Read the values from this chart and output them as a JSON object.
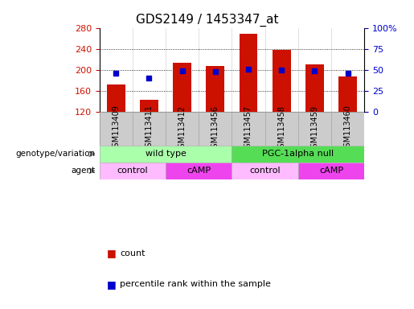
{
  "title": "GDS2149 / 1453347_at",
  "samples": [
    "GSM113409",
    "GSM113411",
    "GSM113412",
    "GSM113456",
    "GSM113457",
    "GSM113458",
    "GSM113459",
    "GSM113460"
  ],
  "counts": [
    172,
    143,
    213,
    207,
    268,
    238,
    210,
    188
  ],
  "percentile_ranks": [
    46,
    40,
    49,
    48,
    51,
    50,
    49,
    46
  ],
  "ylim_left": [
    120,
    280
  ],
  "ylim_right": [
    0,
    100
  ],
  "yticks_left": [
    120,
    160,
    200,
    240,
    280
  ],
  "yticks_right": [
    0,
    25,
    50,
    75,
    100
  ],
  "bar_color": "#cc1100",
  "dot_color": "#0000cc",
  "label_bg_color": "#cccccc",
  "genotype_groups": [
    {
      "label": "wild type",
      "start": 0,
      "end": 4,
      "color": "#aaffaa"
    },
    {
      "label": "PGC-1alpha null",
      "start": 4,
      "end": 8,
      "color": "#55dd55"
    }
  ],
  "agent_groups": [
    {
      "label": "control",
      "start": 0,
      "end": 2,
      "color": "#ffbbff"
    },
    {
      "label": "cAMP",
      "start": 2,
      "end": 4,
      "color": "#ee44ee"
    },
    {
      "label": "control",
      "start": 4,
      "end": 6,
      "color": "#ffbbff"
    },
    {
      "label": "cAMP",
      "start": 6,
      "end": 8,
      "color": "#ee44ee"
    }
  ],
  "legend_items": [
    {
      "label": "count",
      "color": "#cc1100",
      "marker": "s"
    },
    {
      "label": "percentile rank within the sample",
      "color": "#0000cc",
      "marker": "s"
    }
  ],
  "n_samples": 8
}
